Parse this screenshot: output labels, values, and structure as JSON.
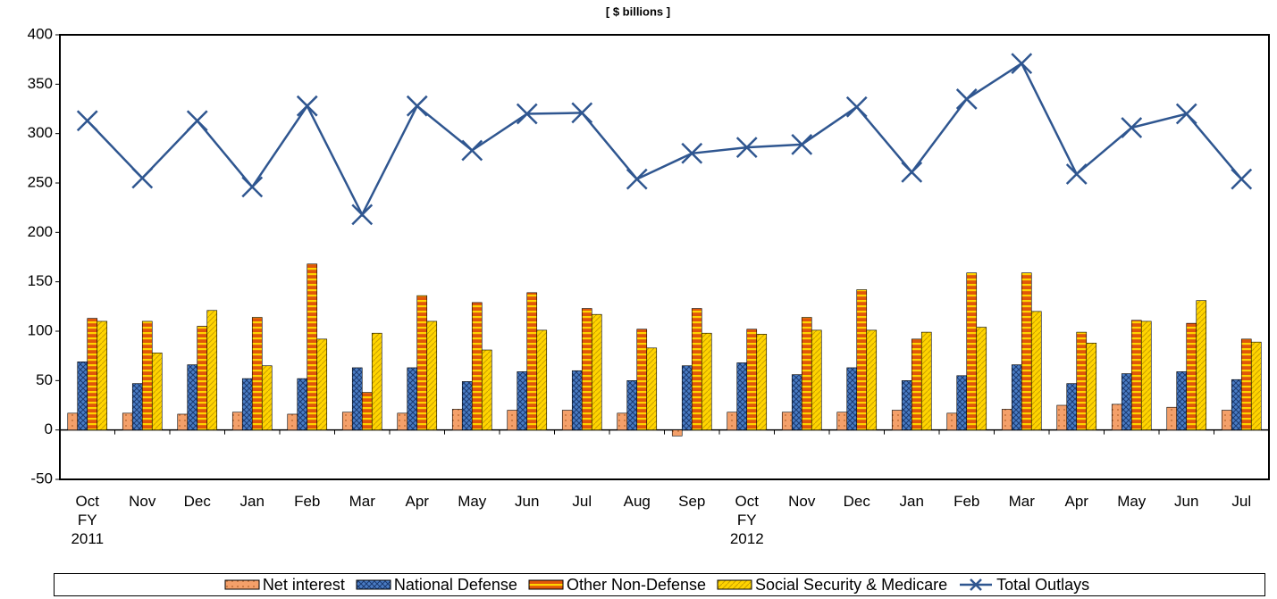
{
  "chart_data": {
    "type": "bar",
    "title": "[ $ billions ]",
    "categories": [
      "Oct\nFY\n2011",
      "Nov",
      "Dec",
      "Jan",
      "Feb",
      "Mar",
      "Apr",
      "May",
      "Jun",
      "Jul",
      "Aug",
      "Sep",
      "Oct\nFY\n2012",
      "Nov",
      "Dec",
      "Jan",
      "Feb",
      "Mar",
      "Apr",
      "May",
      "Jun",
      "Jul"
    ],
    "series": [
      {
        "name": "Net interest",
        "color": "#f4a06a",
        "values": [
          17,
          17,
          16,
          18,
          16,
          18,
          17,
          21,
          20,
          20,
          17,
          -6,
          18,
          18,
          18,
          20,
          17,
          21,
          25,
          26,
          23,
          20
        ]
      },
      {
        "name": "National Defense",
        "color": "#4a7cc4",
        "values": [
          69,
          47,
          66,
          52,
          52,
          63,
          63,
          49,
          59,
          60,
          50,
          65,
          68,
          56,
          63,
          50,
          55,
          66,
          47,
          57,
          59,
          51
        ]
      },
      {
        "name": "Other Non-Defense",
        "color": "#e0560a",
        "values": [
          113,
          110,
          105,
          114,
          168,
          38,
          136,
          129,
          139,
          123,
          102,
          123,
          102,
          114,
          142,
          92,
          159,
          159,
          99,
          111,
          108,
          92
        ]
      },
      {
        "name": "Social Security & Medicare",
        "color": "#ffd400",
        "values": [
          110,
          78,
          121,
          65,
          92,
          98,
          110,
          81,
          101,
          117,
          83,
          98,
          97,
          101,
          101,
          99,
          104,
          120,
          88,
          110,
          131,
          89
        ]
      },
      {
        "name": "Total Outlays",
        "color": "#2f5690",
        "type": "line",
        "values": [
          313,
          255,
          313,
          246,
          328,
          218,
          328,
          283,
          320,
          321,
          254,
          280,
          286,
          289,
          327,
          261,
          335,
          371,
          259,
          306,
          320,
          254
        ]
      }
    ],
    "ylim": [
      -50,
      400
    ],
    "yticks": [
      -50,
      0,
      50,
      100,
      150,
      200,
      250,
      300,
      350,
      400
    ],
    "grid": false,
    "legend": "bottom"
  }
}
